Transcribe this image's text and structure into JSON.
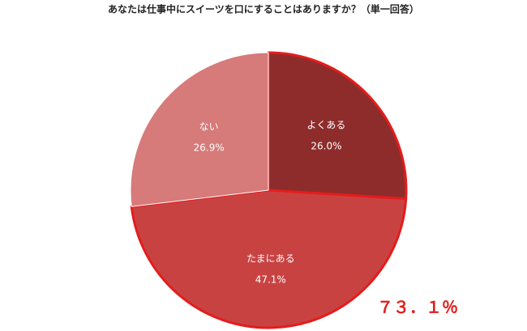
{
  "chart_data": {
    "type": "pie",
    "title": "あなたは仕事中にスイーツを口にすることはありますか？（単一回答）",
    "categories": [
      "よくある",
      "たまにある",
      "ない"
    ],
    "values": [
      26.0,
      47.1,
      26.9
    ],
    "value_labels": [
      "26.0%",
      "47.1%",
      "26.9%"
    ],
    "colors": [
      "#8e2c2c",
      "#c94242",
      "#d67a7a"
    ],
    "annotation": "７３．１％"
  }
}
